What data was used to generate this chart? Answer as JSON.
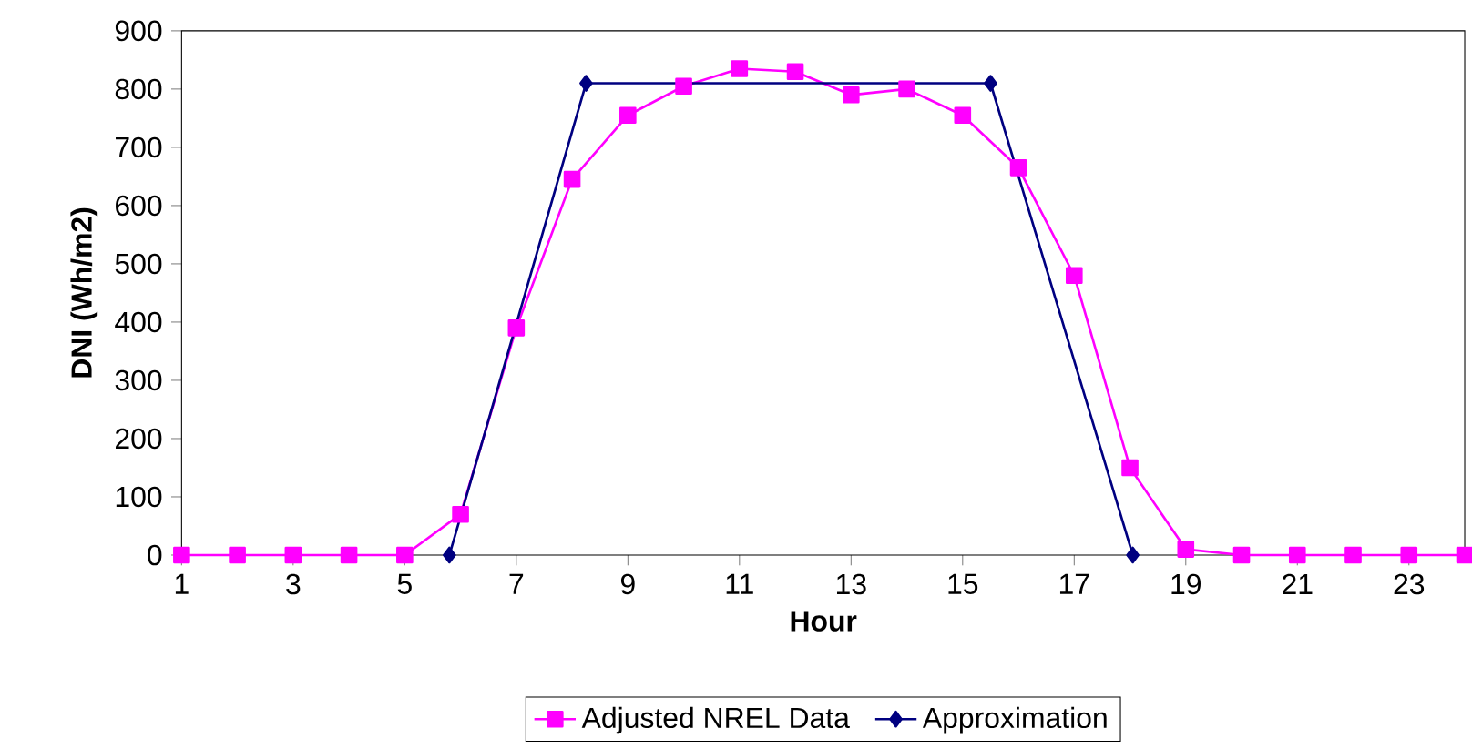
{
  "chart_data": {
    "type": "line",
    "xlabel": "Hour",
    "ylabel": "DNI (Wh/m2)",
    "xlim": [
      1,
      24
    ],
    "xticks": [
      1,
      3,
      5,
      7,
      9,
      11,
      13,
      15,
      17,
      19,
      21,
      23
    ],
    "ylim": [
      0,
      900
    ],
    "yticks": [
      0,
      100,
      200,
      300,
      400,
      500,
      600,
      700,
      800,
      900
    ],
    "grid": false,
    "legend": "bottom",
    "series": [
      {
        "name": "Adjusted NREL Data",
        "color": "#ff00ff",
        "marker": "square",
        "x": [
          1,
          2,
          3,
          4,
          5,
          6,
          7,
          8,
          9,
          10,
          11,
          12,
          13,
          14,
          15,
          16,
          17,
          18,
          19,
          20,
          21,
          22,
          23,
          24
        ],
        "values": [
          0,
          0,
          0,
          0,
          0,
          70,
          390,
          645,
          755,
          805,
          835,
          830,
          790,
          800,
          755,
          665,
          480,
          150,
          10,
          0,
          0,
          0,
          0,
          0
        ]
      },
      {
        "name": "Approximation",
        "color": "#000080",
        "marker": "diamond",
        "x": [
          5.8,
          8.25,
          15.5,
          18.05
        ],
        "values": [
          0,
          810,
          810,
          0
        ]
      }
    ]
  }
}
